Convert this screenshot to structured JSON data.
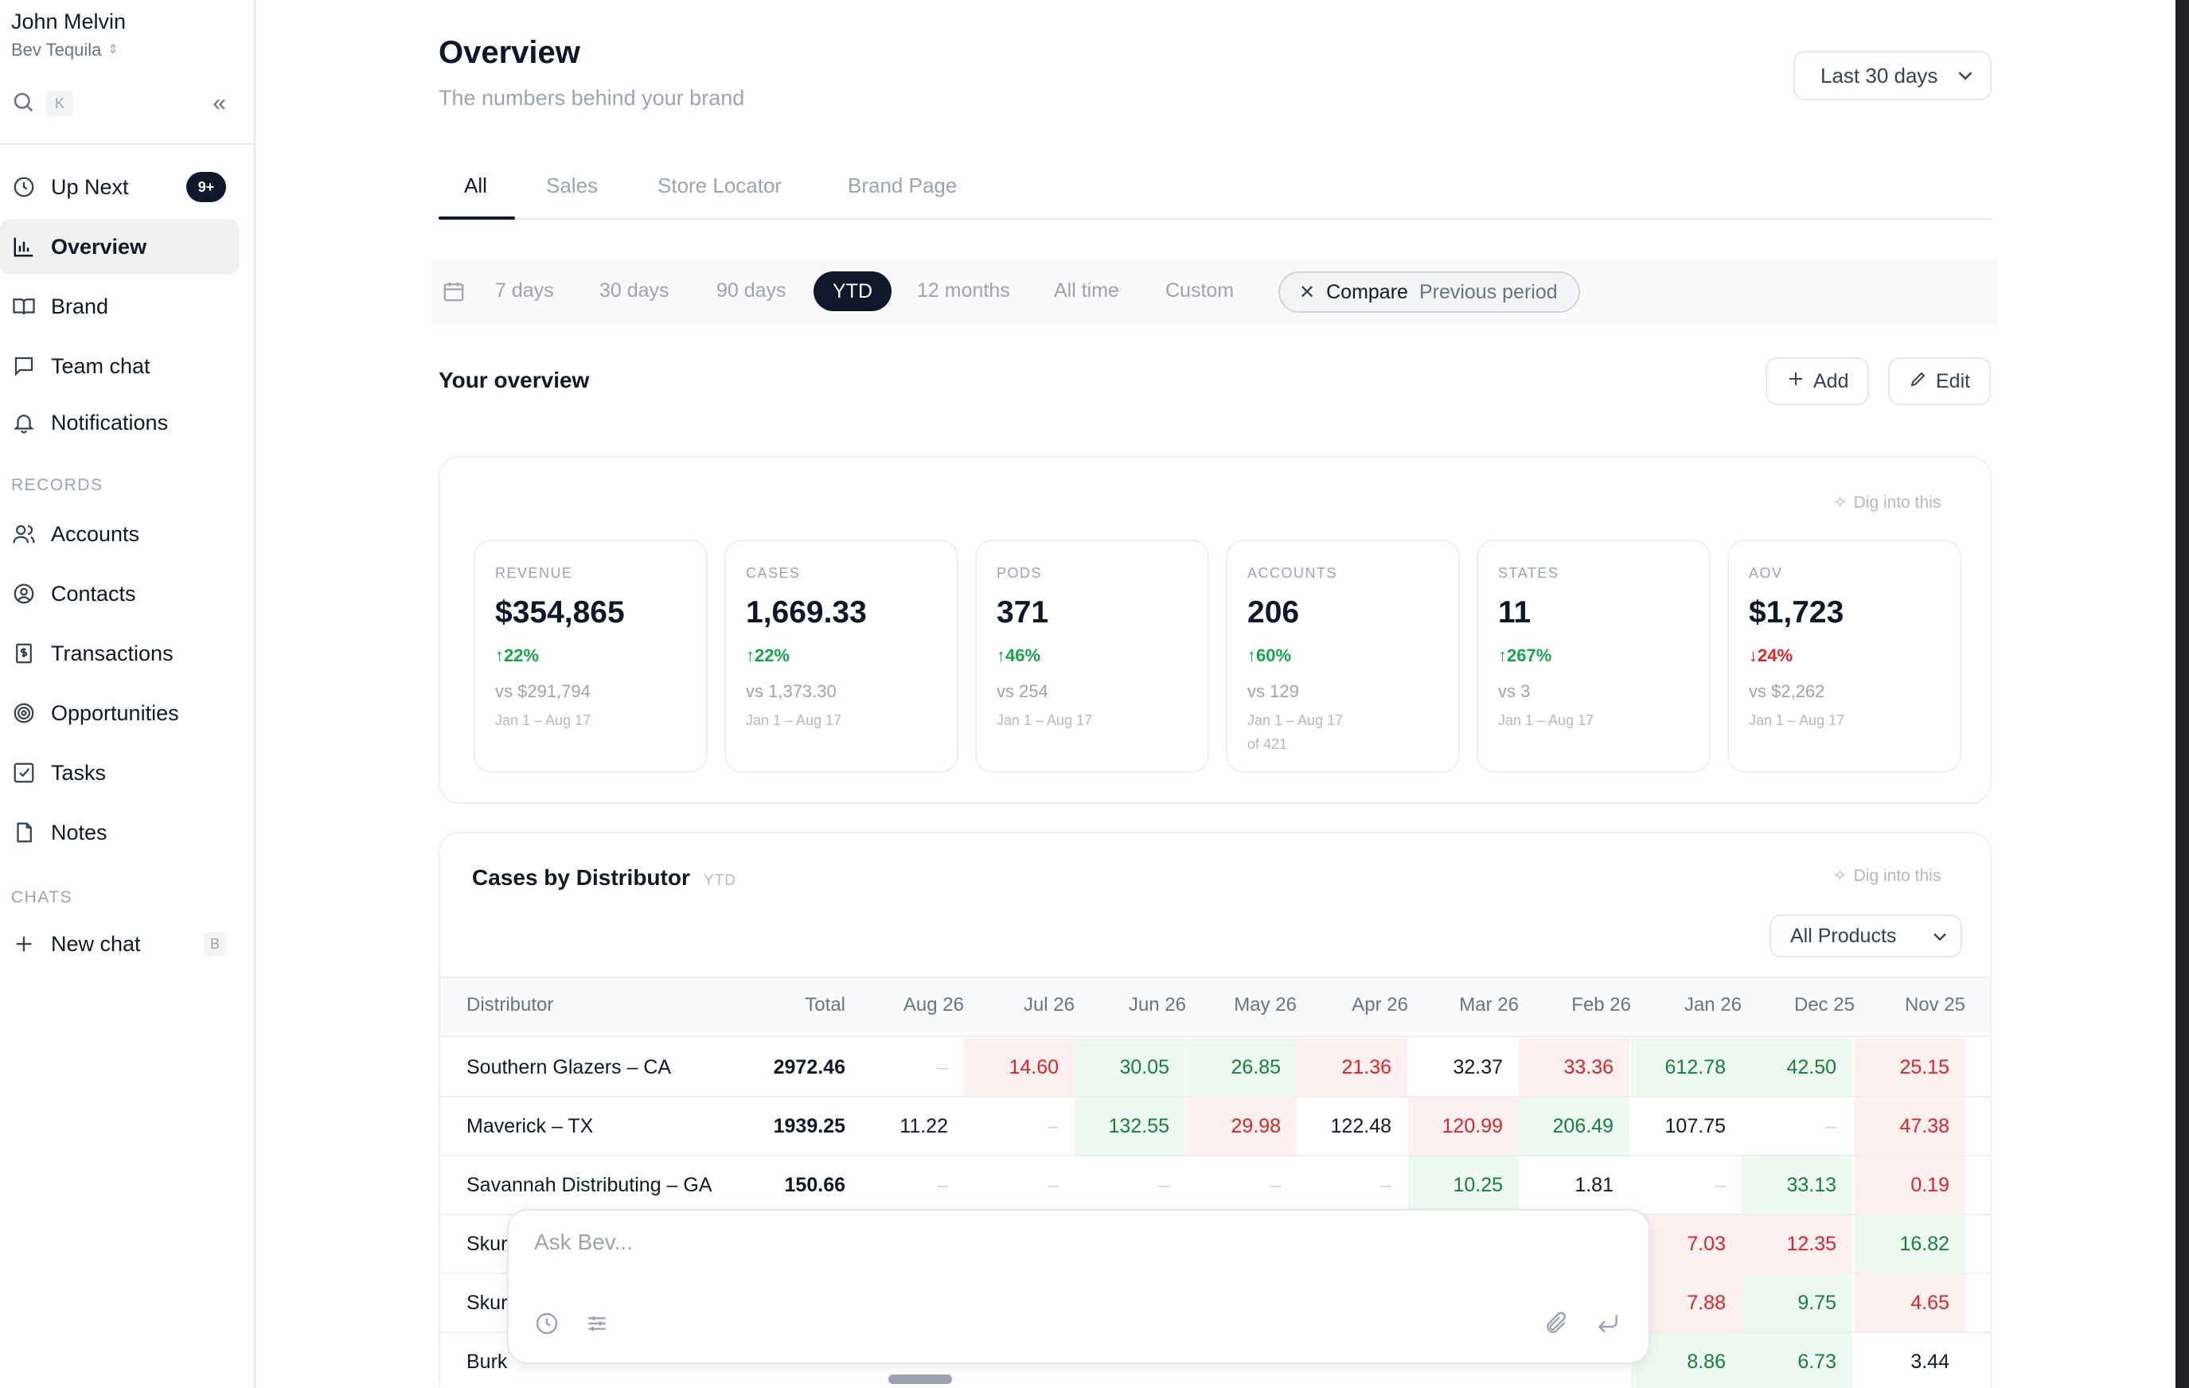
{
  "sidebar": {
    "user_name": "John Melvin",
    "workspace": "Bev Tequila",
    "search_shortcut": "K",
    "nav": [
      {
        "label": "Up Next",
        "icon": "clock-icon",
        "badge": "9+"
      },
      {
        "label": "Overview",
        "icon": "bar-chart-icon",
        "active": true
      },
      {
        "label": "Brand",
        "icon": "book-icon"
      },
      {
        "label": "Team chat",
        "icon": "chat-bubble-icon"
      },
      {
        "label": "Notifications",
        "icon": "bell-icon"
      }
    ],
    "records_label": "RECORDS",
    "records": [
      {
        "label": "Accounts",
        "icon": "users-icon"
      },
      {
        "label": "Contacts",
        "icon": "contact-circle-icon"
      },
      {
        "label": "Transactions",
        "icon": "dollar-receipt-icon"
      },
      {
        "label": "Opportunities",
        "icon": "target-icon"
      },
      {
        "label": "Tasks",
        "icon": "checkbox-icon"
      },
      {
        "label": "Notes",
        "icon": "note-icon"
      }
    ],
    "chats_label": "CHATS",
    "new_chat": {
      "label": "New chat",
      "shortcut": "B"
    }
  },
  "header": {
    "title": "Overview",
    "subtitle": "The numbers behind your brand",
    "range_select": "Last 30 days"
  },
  "tabs": [
    "All",
    "Sales",
    "Store Locator",
    "Brand Page"
  ],
  "filters": {
    "options": [
      "7 days",
      "30 days",
      "90 days",
      "YTD",
      "12 months",
      "All time",
      "Custom"
    ],
    "selected": "YTD",
    "compare_label": "Compare",
    "compare_value": "Previous period"
  },
  "overview": {
    "title": "Your overview",
    "add_label": "Add",
    "edit_label": "Edit",
    "dig_label": "Dig into this"
  },
  "kpis": [
    {
      "label": "REVENUE",
      "value": "$354,865",
      "delta": "22%",
      "direction": "up",
      "vs": "vs $291,794",
      "range": "Jan 1 – Aug 17"
    },
    {
      "label": "CASES",
      "value": "1,669.33",
      "delta": "22%",
      "direction": "up",
      "vs": "vs 1,373.30",
      "range": "Jan 1 – Aug 17"
    },
    {
      "label": "PODS",
      "value": "371",
      "delta": "46%",
      "direction": "up",
      "vs": "vs 254",
      "range": "Jan 1 – Aug 17"
    },
    {
      "label": "ACCOUNTS",
      "value": "206",
      "delta": "60%",
      "direction": "up",
      "vs": "vs 129",
      "range": "Jan 1 – Aug 17",
      "extra": "of 421"
    },
    {
      "label": "STATES",
      "value": "11",
      "delta": "267%",
      "direction": "up",
      "vs": "vs 3",
      "range": "Jan 1 – Aug 17"
    },
    {
      "label": "AOV",
      "value": "$1,723",
      "delta": "24%",
      "direction": "down",
      "vs": "vs $2,262",
      "range": "Jan 1 – Aug 17"
    }
  ],
  "distributors": {
    "title": "Cases by Distributor",
    "period": "YTD",
    "dig_label": "Dig into this",
    "product_filter": "All Products",
    "columns": [
      "Distributor",
      "Total",
      "Aug 26",
      "Jul 26",
      "Jun 26",
      "May 26",
      "Apr 26",
      "Mar 26",
      "Feb 26",
      "Jan 26",
      "Dec 25",
      "Nov 25"
    ],
    "rows": [
      {
        "name": "Southern Glazers – CA",
        "total": "2972.46",
        "cells": [
          [
            "–",
            "d"
          ],
          [
            "14.60",
            "r"
          ],
          [
            "30.05",
            "g"
          ],
          [
            "26.85",
            "g"
          ],
          [
            "21.36",
            "r"
          ],
          [
            "32.37",
            "n"
          ],
          [
            "33.36",
            "r"
          ],
          [
            "612.78",
            "g"
          ],
          [
            "42.50",
            "g"
          ],
          [
            "25.15",
            "r"
          ]
        ]
      },
      {
        "name": "Maverick – TX",
        "total": "1939.25",
        "cells": [
          [
            "11.22",
            "n"
          ],
          [
            "–",
            "d"
          ],
          [
            "132.55",
            "g"
          ],
          [
            "29.98",
            "r"
          ],
          [
            "122.48",
            "n"
          ],
          [
            "120.99",
            "r"
          ],
          [
            "206.49",
            "g"
          ],
          [
            "107.75",
            "n"
          ],
          [
            "–",
            "d"
          ],
          [
            "47.38",
            "r"
          ]
        ]
      },
      {
        "name": "Savannah Distributing – GA",
        "total": "150.66",
        "cells": [
          [
            "–",
            "d"
          ],
          [
            "–",
            "d"
          ],
          [
            "–",
            "d"
          ],
          [
            "–",
            "d"
          ],
          [
            "–",
            "d"
          ],
          [
            "10.25",
            "g"
          ],
          [
            "1.81",
            "n"
          ],
          [
            "–",
            "d"
          ],
          [
            "33.13",
            "g"
          ],
          [
            "0.19",
            "r"
          ]
        ]
      },
      {
        "name": "Skur",
        "total": "",
        "cells": [
          [
            "",
            "n"
          ],
          [
            "",
            "n"
          ],
          [
            "",
            "n"
          ],
          [
            "",
            "n"
          ],
          [
            "",
            "n"
          ],
          [
            "",
            "n"
          ],
          [
            "",
            "n"
          ],
          [
            "7.03",
            "r"
          ],
          [
            "12.35",
            "r"
          ],
          [
            "16.82",
            "g"
          ]
        ]
      },
      {
        "name": "Skur",
        "total": "",
        "cells": [
          [
            "",
            "n"
          ],
          [
            "",
            "n"
          ],
          [
            "",
            "n"
          ],
          [
            "",
            "n"
          ],
          [
            "",
            "n"
          ],
          [
            "",
            "n"
          ],
          [
            "",
            "n"
          ],
          [
            "7.88",
            "r"
          ],
          [
            "9.75",
            "g"
          ],
          [
            "4.65",
            "r"
          ]
        ]
      },
      {
        "name": "Burk",
        "total": "",
        "cells": [
          [
            "",
            "n"
          ],
          [
            "",
            "n"
          ],
          [
            "",
            "n"
          ],
          [
            "",
            "n"
          ],
          [
            "",
            "n"
          ],
          [
            "",
            "n"
          ],
          [
            "",
            "n"
          ],
          [
            "8.86",
            "g"
          ],
          [
            "6.73",
            "g"
          ],
          [
            "3.44",
            "n"
          ]
        ]
      }
    ]
  },
  "ask": {
    "placeholder": "Ask Bev..."
  },
  "colors": {
    "accent": "#0f172a",
    "positive": "#16a34a",
    "negative": "#dc2626",
    "positive_bg": "#eefaf1",
    "negative_bg": "#fdf0f0"
  }
}
